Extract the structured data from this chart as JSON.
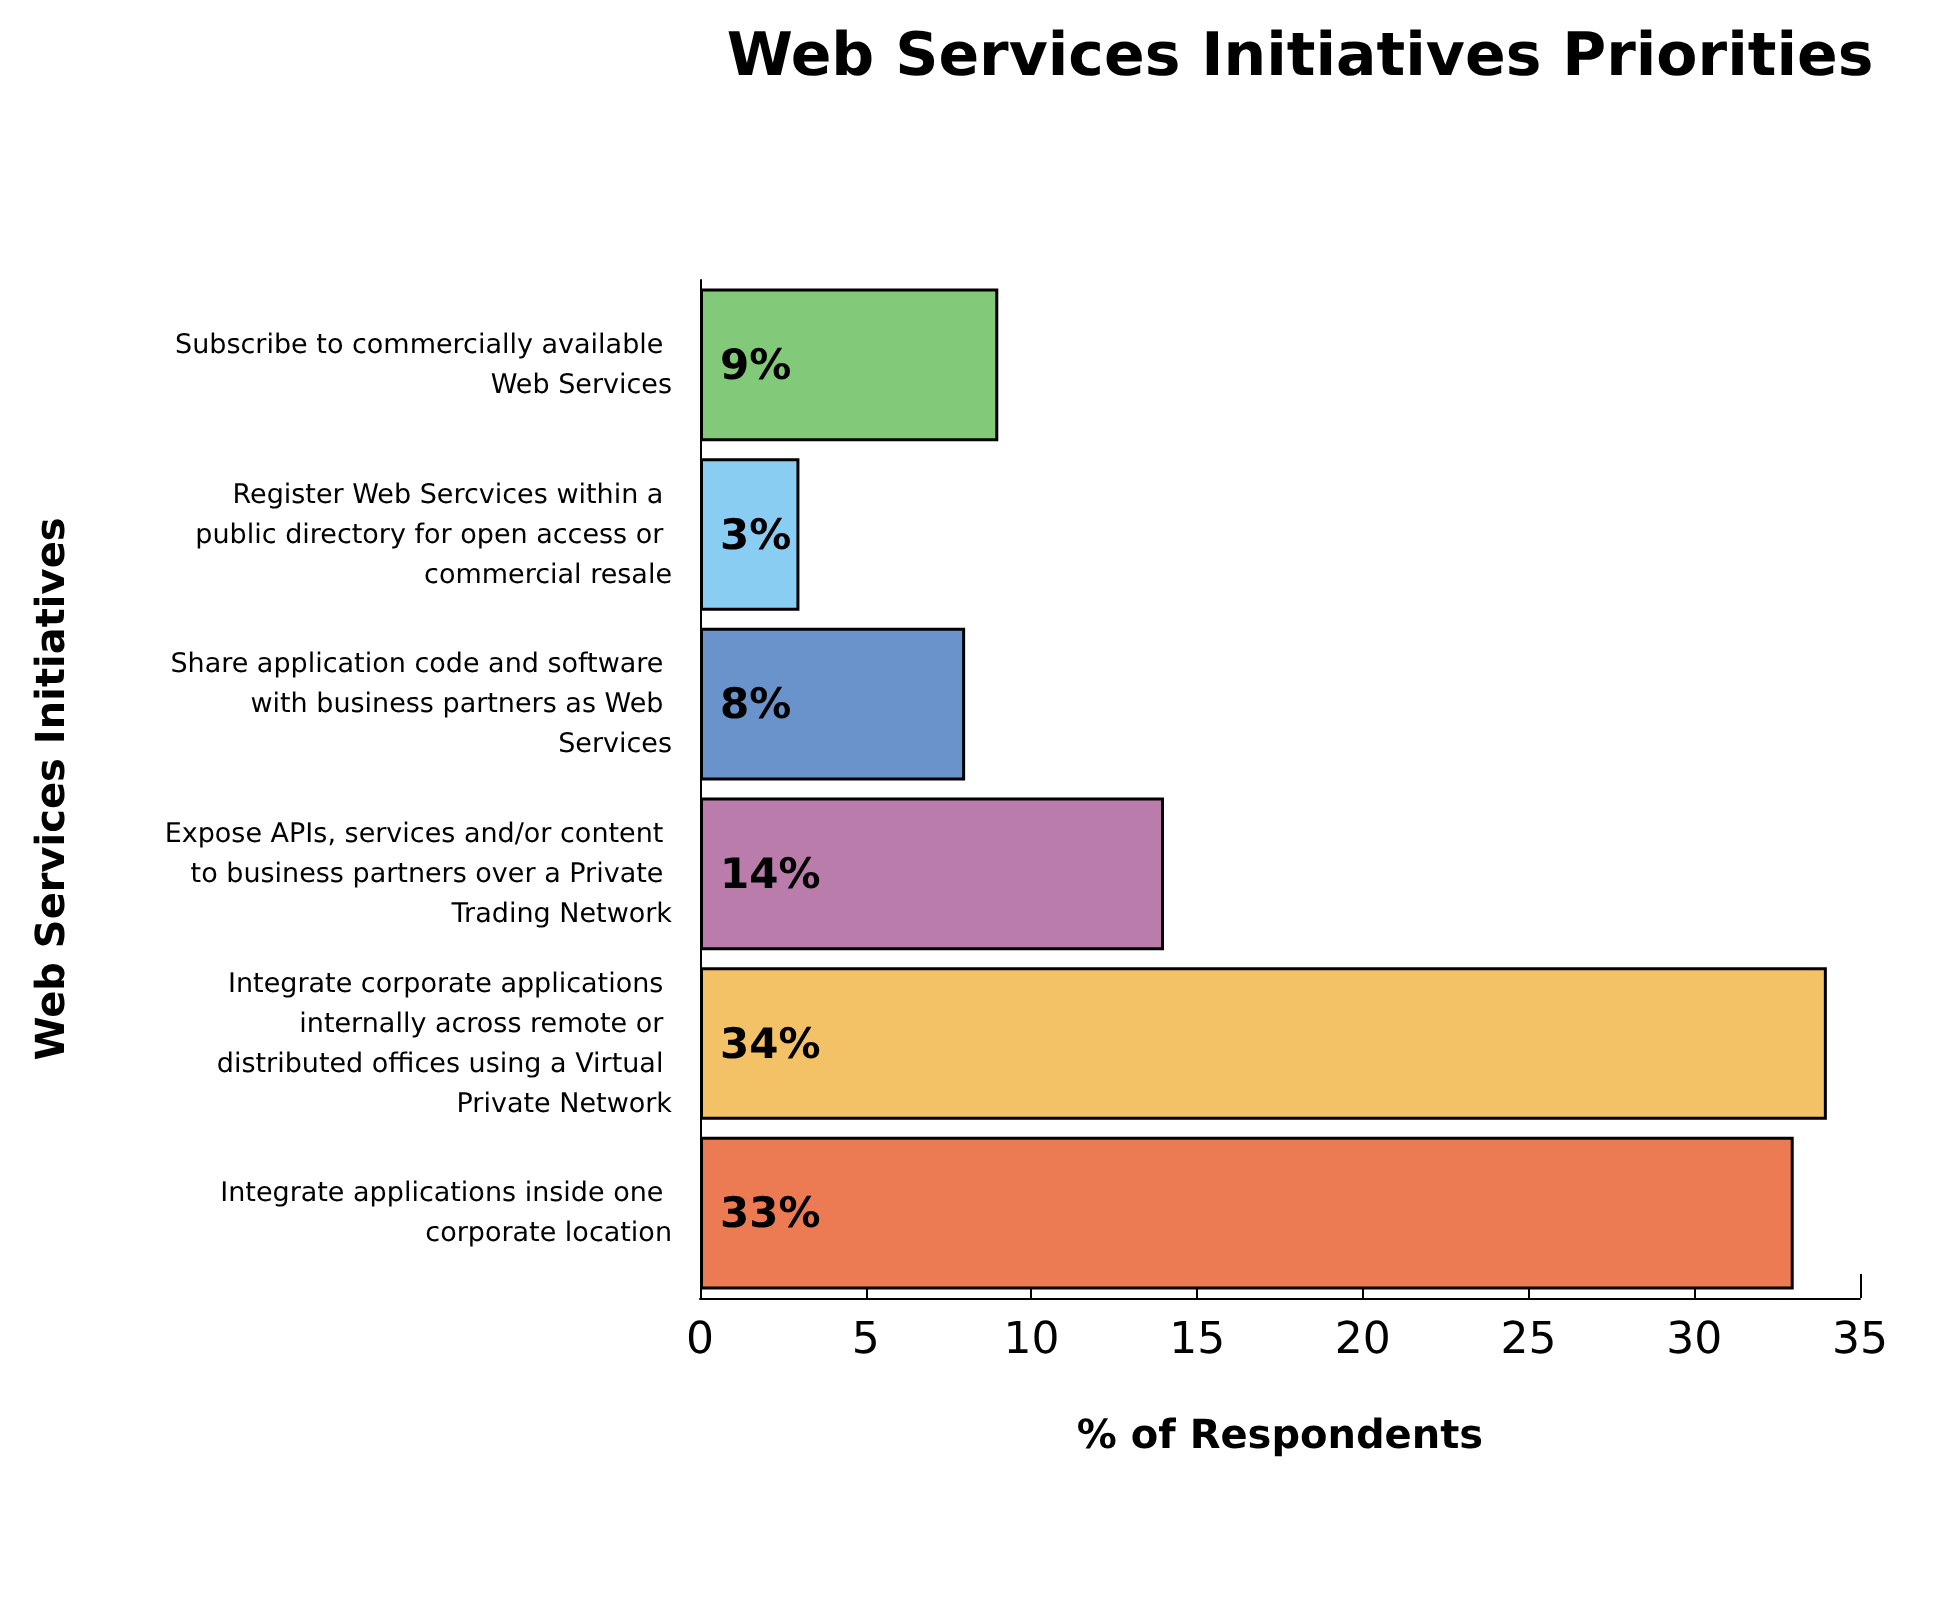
{
  "chart_data": {
    "type": "bar",
    "orientation": "horizontal",
    "title": "Web Services Initiatives Priorities",
    "xlabel": "% of Respondents",
    "ylabel": "Web Services Initiatives",
    "categories": [
      "Subscribe to commercially available Web Services",
      "Register Web Sercvices within a public directory for open access or commercial resale",
      "Share application code and software with business partners as Web Services",
      "Expose APIs, services and/or content to business partners over a Private Trading Network",
      "Integrate corporate applications internally across remote or distributed offices using a Virtual Private Network",
      "Integrate applications inside one corporate location"
    ],
    "values": [
      9,
      3,
      8,
      14,
      34,
      33
    ],
    "value_labels": [
      "9%",
      "3%",
      "8%",
      "14%",
      "34%",
      "33%"
    ],
    "colors": [
      "#82c97a",
      "#8acdf3",
      "#6a93cb",
      "#b97cab",
      "#f4c266",
      "#ec7a53"
    ],
    "xlim": [
      0,
      35
    ],
    "xticks": [
      0,
      5,
      10,
      15,
      20,
      25,
      30,
      35
    ],
    "grid": false
  }
}
